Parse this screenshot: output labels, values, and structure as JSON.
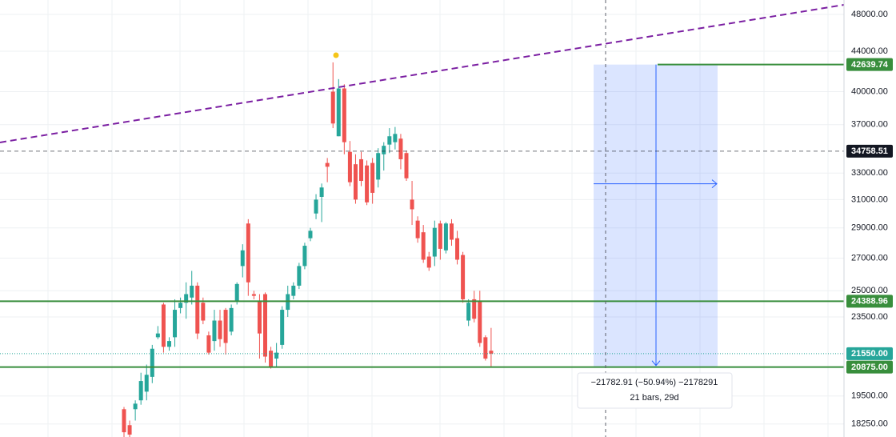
{
  "chart_data": {
    "type": "candlestick",
    "log_scale": true,
    "grid": true,
    "up_color": "#26a69a",
    "down_color": "#ef5350",
    "ylim": [
      17700,
      49660
    ],
    "yticks": [
      {
        "value": 48000,
        "label": "48000.00"
      },
      {
        "value": 44000,
        "label": "44000.00"
      },
      {
        "value": 40000,
        "label": "40000.00"
      },
      {
        "value": 37000,
        "label": "37000.00"
      },
      {
        "value": 33000,
        "label": "33000.00"
      },
      {
        "value": 31000,
        "label": "31000.00"
      },
      {
        "value": 29000,
        "label": "29000.00"
      },
      {
        "value": 27000,
        "label": "27000.00"
      },
      {
        "value": 25000,
        "label": "25000.00"
      },
      {
        "value": 23500,
        "label": "23500.00"
      },
      {
        "value": 19500,
        "label": "19500.00"
      },
      {
        "value": 18250,
        "label": "18250.00"
      }
    ],
    "open": [
      18900,
      18200,
      18900,
      19300,
      19700,
      20400,
      22400,
      24200,
      21900,
      22400,
      24000,
      24300,
      24600,
      25300,
      24300,
      22500,
      22200,
      23300,
      23900,
      22700,
      24400,
      26500,
      29300,
      24800,
      24400,
      24800,
      21700,
      21300,
      22000,
      23900,
      24700,
      25300,
      26500,
      28300,
      30000,
      31200,
      33800,
      40000,
      36000,
      40300,
      34700,
      33700,
      34100,
      33600,
      33800,
      32500,
      34500,
      35300,
      35500,
      35800,
      34600,
      31000,
      29500,
      28700,
      27100,
      27100,
      29300,
      27500,
      29300,
      28300,
      27200,
      23300,
      24500,
      24400,
      22400,
      21700
    ],
    "high": [
      19000,
      18400,
      19300,
      20600,
      21000,
      22000,
      23000,
      24300,
      22400,
      24500,
      24600,
      25500,
      26200,
      25500,
      24600,
      22700,
      23900,
      23900,
      24000,
      24200,
      25500,
      27900,
      29600,
      25000,
      24800,
      24900,
      21900,
      22100,
      24100,
      25300,
      25500,
      26700,
      28000,
      29000,
      31400,
      32200,
      34200,
      42860,
      41200,
      40700,
      35600,
      34500,
      34700,
      34000,
      34200,
      35000,
      35500,
      36700,
      36800,
      36200,
      34800,
      32400,
      29800,
      29200,
      27400,
      29500,
      29500,
      29400,
      29600,
      28800,
      27400,
      24500,
      25000,
      25000,
      22500,
      22900
    ],
    "low": [
      17700,
      17700,
      18400,
      19100,
      19300,
      20100,
      22300,
      21600,
      21700,
      21900,
      23700,
      23400,
      24200,
      22300,
      23100,
      21500,
      21700,
      21900,
      21500,
      22500,
      24200,
      25800,
      24700,
      24500,
      21300,
      21100,
      20800,
      20900,
      21800,
      23500,
      24500,
      25100,
      26300,
      28100,
      29600,
      29400,
      32300,
      36700,
      36000,
      34500,
      32000,
      30700,
      32000,
      30600,
      30700,
      31900,
      33200,
      34600,
      34900,
      33300,
      32400,
      29200,
      28000,
      26700,
      26200,
      26500,
      26900,
      27300,
      27800,
      26600,
      24300,
      23000,
      23200,
      21900,
      21200,
      20900
    ],
    "close": [
      17900,
      17800,
      19150,
      20200,
      20500,
      21800,
      22600,
      21900,
      22200,
      23900,
      24300,
      24800,
      25300,
      22600,
      23300,
      21600,
      23300,
      22300,
      22100,
      24000,
      25400,
      27500,
      25500,
      24700,
      22600,
      21400,
      20900,
      21600,
      23900,
      24800,
      25300,
      26500,
      27800,
      28800,
      31000,
      31900,
      33500,
      37100,
      40300,
      35500,
      32300,
      31000,
      32400,
      30800,
      31500,
      34600,
      35200,
      36000,
      36200,
      34100,
      32600,
      30300,
      28300,
      26900,
      26400,
      29000,
      27600,
      29300,
      28200,
      26900,
      24500,
      24300,
      23400,
      22100,
      21300,
      21550
    ],
    "trend_line": {
      "color": "#7b1fa2",
      "values": [
        35480,
        49100
      ]
    },
    "price_lines": [
      {
        "value": 42639.74,
        "label": "42639.74",
        "color": "#388e3c",
        "style": "solid"
      },
      {
        "value": 34758.51,
        "label": "34758.51",
        "color": "#131722",
        "style": "dashed"
      },
      {
        "value": 24388.96,
        "label": "24388.96",
        "color": "#388e3c",
        "style": "solid"
      },
      {
        "value": 21550,
        "label": "21550.00",
        "color": "#26a69a",
        "style": "dotted"
      },
      {
        "value": 20875,
        "label": "20875.00",
        "color": "#388e3c",
        "style": "solid"
      }
    ],
    "measure": {
      "color": "#2962ff",
      "label": "−21782.91 (−50.94%) −2178291",
      "sublabel": "21 bars, 29d"
    }
  }
}
